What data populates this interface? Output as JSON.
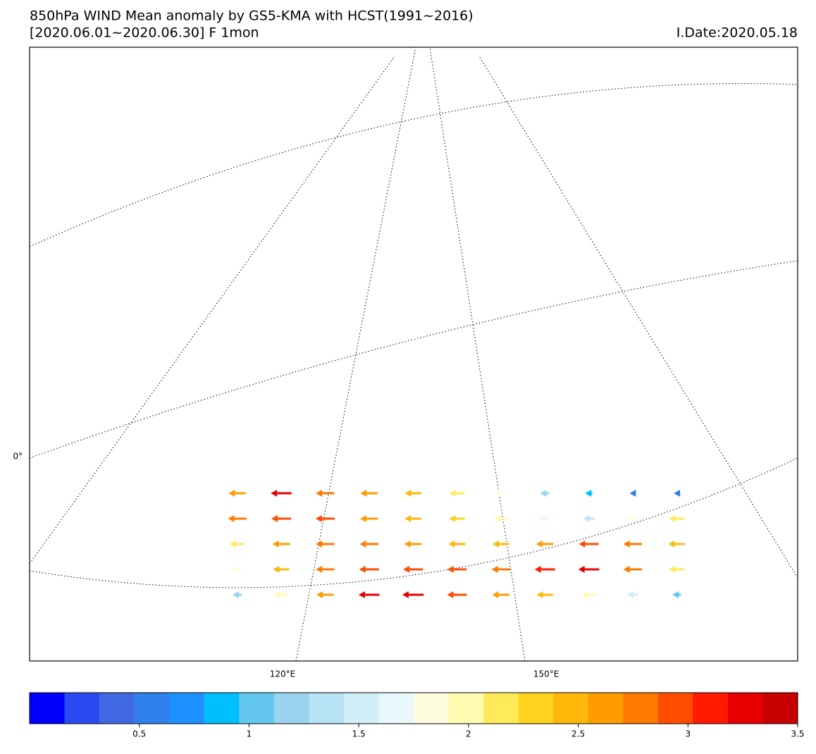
{
  "chart_data": {
    "type": "vector-map",
    "title": "850hPa WIND Mean anomaly by GS5-KMA with HCST(1991~2016)",
    "subtitle": "[2020.06.01~2020.06.30] F 1mon",
    "init_date": "I.Date:2020.05.18",
    "lon_ticks": [
      {
        "value": 120,
        "label": "120°E"
      },
      {
        "value": 150,
        "label": "150°E"
      }
    ],
    "lat_ticks": [
      {
        "value": 0,
        "label": "0°"
      }
    ],
    "lats": [
      10,
      6,
      2,
      -2,
      -6
    ],
    "lons": [
      115,
      120,
      125,
      130,
      135,
      140,
      145,
      150,
      155,
      160,
      165
    ],
    "u": [
      [
        -2.6,
        -3.2,
        -2.8,
        -2.6,
        -2.4,
        -2.2,
        -1.8,
        -1.2,
        -0.8,
        -0.6,
        -0.5
      ],
      [
        -2.8,
        -3.0,
        -2.9,
        -2.7,
        -2.5,
        -2.3,
        -2.0,
        -1.6,
        -1.4,
        -1.8,
        -2.2
      ],
      [
        -2.2,
        -2.6,
        -2.8,
        -2.8,
        -2.6,
        -2.5,
        -2.4,
        -2.6,
        -3.0,
        -2.8,
        -2.4
      ],
      [
        -1.8,
        -2.4,
        -2.8,
        -3.0,
        -3.0,
        -2.9,
        -2.8,
        -3.1,
        -3.2,
        -2.8,
        -2.2
      ],
      [
        -1.2,
        -2.0,
        -2.6,
        -3.2,
        -3.3,
        -3.0,
        -2.6,
        -2.4,
        -2.0,
        -1.5,
        -1.0
      ]
    ],
    "colorbar": {
      "lim": [
        0,
        3.5
      ],
      "ticks": [
        0.5,
        1.0,
        1.5,
        2.0,
        2.5,
        3.0,
        3.5
      ],
      "colors": [
        "#0000ff",
        "#2a4af0",
        "#4169e1",
        "#2f80ed",
        "#1e90ff",
        "#00bfff",
        "#63c7f0",
        "#9ad3ee",
        "#b8e2f5",
        "#d2eef8",
        "#e8f8fc",
        "#fffde0",
        "#fffbb0",
        "#ffeb5a",
        "#ffd21e",
        "#ffb80a",
        "#ff9c00",
        "#ff7a00",
        "#ff4d00",
        "#ff1a00",
        "#e60000",
        "#c80000"
      ]
    }
  }
}
